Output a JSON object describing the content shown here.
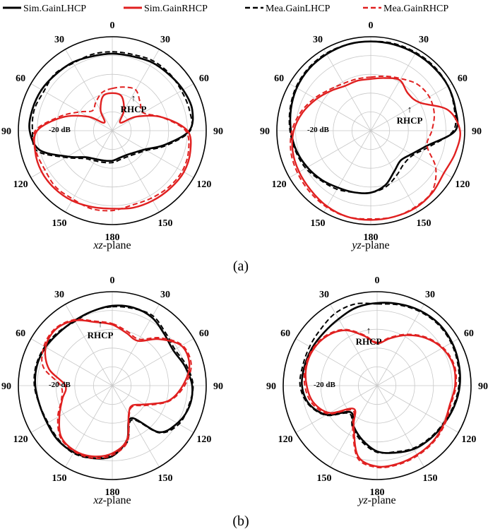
{
  "legend": {
    "items": [
      {
        "label": "Sim.GainLHCP",
        "color": "#000000",
        "dash": "solid"
      },
      {
        "label": "Sim.GainRHCP",
        "color": "#e02020",
        "dash": "solid"
      },
      {
        "label": "Mea.GainLHCP",
        "color": "#000000",
        "dash": "dashed"
      },
      {
        "label": "Mea.GainRHCP",
        "color": "#e02020",
        "dash": "dashed"
      }
    ]
  },
  "captions": {
    "a": "(a)",
    "b": "(b)"
  },
  "chart_data": [
    {
      "type": "polar-line",
      "panel": "a",
      "plane_var": "xz",
      "plane_suffix": "-plane",
      "level_label": "-20 dB",
      "annotation": "RHCP",
      "annotation_arrow": "↑",
      "angle_ticks": [
        "0",
        "30",
        "60",
        "90",
        "120",
        "150",
        "180",
        "150",
        "120",
        "90",
        "60",
        "30"
      ],
      "radial_scale": "normalized 0-1 (outer ring = max gain)",
      "series": [
        {
          "label": "Sim.GainLHCP",
          "theta_deg": [
            0,
            15,
            30,
            45,
            60,
            75,
            90,
            105,
            120,
            135,
            150,
            165,
            180,
            195,
            210,
            225,
            240,
            255,
            270,
            285,
            300,
            315,
            330,
            345
          ],
          "r": [
            0.82,
            0.82,
            0.84,
            0.85,
            0.87,
            0.88,
            0.82,
            0.58,
            0.4,
            0.33,
            0.3,
            0.3,
            0.32,
            0.33,
            0.35,
            0.4,
            0.55,
            0.8,
            0.88,
            0.88,
            0.87,
            0.85,
            0.84,
            0.82
          ]
        },
        {
          "label": "Mea.GainLHCP",
          "theta_deg": [
            0,
            15,
            30,
            45,
            60,
            75,
            90,
            105,
            120,
            135,
            150,
            165,
            180,
            195,
            210,
            225,
            240,
            255,
            270,
            285,
            300,
            315,
            330,
            345
          ],
          "r": [
            0.84,
            0.84,
            0.86,
            0.86,
            0.85,
            0.85,
            0.83,
            0.6,
            0.42,
            0.35,
            0.32,
            0.32,
            0.34,
            0.35,
            0.37,
            0.42,
            0.57,
            0.83,
            0.85,
            0.86,
            0.84,
            0.86,
            0.83,
            0.84
          ]
        },
        {
          "label": "Sim.GainRHCP",
          "theta_deg": [
            0,
            15,
            30,
            45,
            60,
            75,
            90,
            105,
            120,
            135,
            150,
            165,
            180,
            195,
            210,
            225,
            240,
            255,
            270,
            285,
            300,
            315,
            330,
            345
          ],
          "r": [
            0.4,
            0.38,
            0.25,
            0.12,
            0.3,
            0.55,
            0.8,
            0.86,
            0.88,
            0.87,
            0.86,
            0.85,
            0.83,
            0.84,
            0.86,
            0.87,
            0.87,
            0.85,
            0.8,
            0.55,
            0.3,
            0.12,
            0.25,
            0.38
          ]
        },
        {
          "label": "Mea.GainRHCP",
          "theta_deg": [
            0,
            15,
            30,
            45,
            60,
            75,
            90,
            105,
            120,
            135,
            150,
            165,
            180,
            195,
            210,
            225,
            240,
            255,
            270,
            285,
            300,
            315,
            330,
            345
          ],
          "r": [
            0.45,
            0.48,
            0.5,
            0.42,
            0.38,
            0.55,
            0.78,
            0.84,
            0.86,
            0.85,
            0.83,
            0.82,
            0.85,
            0.86,
            0.84,
            0.85,
            0.83,
            0.84,
            0.82,
            0.58,
            0.4,
            0.3,
            0.35,
            0.42
          ]
        }
      ]
    },
    {
      "type": "polar-line",
      "panel": "a",
      "plane_var": "yz",
      "plane_suffix": "-plane",
      "level_label": "-20 dB",
      "annotation": "RHCP",
      "annotation_arrow": "↑",
      "angle_ticks": [
        "0",
        "30",
        "60",
        "90",
        "120",
        "150",
        "180",
        "150",
        "120",
        "90",
        "60",
        "30"
      ],
      "radial_scale": "normalized 0-1 (outer ring = max gain)",
      "series": [
        {
          "label": "Sim.GainLHCP",
          "theta_deg": [
            0,
            15,
            30,
            45,
            60,
            75,
            90,
            105,
            120,
            135,
            150,
            165,
            180,
            195,
            210,
            225,
            240,
            255,
            270,
            285,
            300,
            315,
            330,
            345
          ],
          "r": [
            0.95,
            0.95,
            0.95,
            0.95,
            0.95,
            0.93,
            0.9,
            0.62,
            0.5,
            0.45,
            0.5,
            0.6,
            0.66,
            0.68,
            0.7,
            0.74,
            0.78,
            0.82,
            0.85,
            0.88,
            0.91,
            0.93,
            0.94,
            0.95
          ]
        },
        {
          "label": "Mea.GainLHCP",
          "theta_deg": [
            0,
            15,
            30,
            45,
            60,
            75,
            90,
            105,
            120,
            135,
            150,
            165,
            180,
            195,
            210,
            225,
            240,
            255,
            270,
            285,
            300,
            315,
            330,
            345
          ],
          "r": [
            0.95,
            0.96,
            0.96,
            0.96,
            0.95,
            0.92,
            0.88,
            0.65,
            0.52,
            0.5,
            0.55,
            0.62,
            0.66,
            0.68,
            0.72,
            0.75,
            0.8,
            0.83,
            0.86,
            0.89,
            0.92,
            0.94,
            0.95,
            0.95
          ]
        },
        {
          "label": "Sim.GainRHCP",
          "theta_deg": [
            0,
            15,
            30,
            45,
            60,
            75,
            90,
            105,
            120,
            135,
            150,
            165,
            180,
            195,
            210,
            225,
            240,
            255,
            270,
            285,
            300,
            315,
            330,
            345
          ],
          "r": [
            0.55,
            0.58,
            0.62,
            0.56,
            0.6,
            0.85,
            0.95,
            0.93,
            0.9,
            0.93,
            0.95,
            0.95,
            0.95,
            0.95,
            0.93,
            0.9,
            0.88,
            0.86,
            0.82,
            0.75,
            0.67,
            0.6,
            0.55,
            0.55
          ]
        },
        {
          "label": "Mea.GainRHCP",
          "theta_deg": [
            0,
            15,
            30,
            45,
            60,
            75,
            90,
            105,
            120,
            135,
            150,
            165,
            180,
            195,
            210,
            225,
            240,
            255,
            270,
            285,
            300,
            315,
            330,
            345
          ],
          "r": [
            0.57,
            0.6,
            0.64,
            0.7,
            0.72,
            0.7,
            0.65,
            0.62,
            0.8,
            0.92,
            0.94,
            0.95,
            0.94,
            0.95,
            0.94,
            0.92,
            0.9,
            0.88,
            0.84,
            0.77,
            0.69,
            0.62,
            0.58,
            0.57
          ]
        }
      ]
    },
    {
      "type": "polar-line",
      "panel": "b",
      "plane_var": "xz",
      "plane_suffix": "-plane",
      "level_label": "-20 dB",
      "annotation": "RHCP",
      "annotation_arrow": "↑",
      "angle_ticks": [
        "0",
        "30",
        "60",
        "90",
        "120",
        "150",
        "180",
        "150",
        "120",
        "90",
        "60",
        "30"
      ],
      "radial_scale": "normalized 0-1 (outer ring = max gain)",
      "series": [
        {
          "label": "Sim.GainLHCP",
          "theta_deg": [
            0,
            15,
            30,
            45,
            60,
            75,
            90,
            105,
            120,
            135,
            150,
            165,
            180,
            195,
            210,
            225,
            240,
            255,
            270,
            285,
            300,
            315,
            330,
            345
          ],
          "r": [
            0.85,
            0.86,
            0.84,
            0.78,
            0.75,
            0.8,
            0.85,
            0.85,
            0.8,
            0.7,
            0.4,
            0.6,
            0.75,
            0.8,
            0.82,
            0.82,
            0.8,
            0.8,
            0.82,
            0.83,
            0.82,
            0.8,
            0.8,
            0.82
          ]
        },
        {
          "label": "Mea.GainLHCP",
          "theta_deg": [
            0,
            15,
            30,
            45,
            60,
            75,
            90,
            105,
            120,
            135,
            150,
            165,
            180,
            195,
            210,
            225,
            240,
            255,
            270,
            285,
            300,
            315,
            330,
            345
          ],
          "r": [
            0.84,
            0.85,
            0.86,
            0.8,
            0.77,
            0.82,
            0.86,
            0.84,
            0.82,
            0.71,
            0.42,
            0.62,
            0.73,
            0.8,
            0.83,
            0.81,
            0.79,
            0.8,
            0.83,
            0.84,
            0.83,
            0.81,
            0.79,
            0.82
          ]
        },
        {
          "label": "Sim.GainRHCP",
          "theta_deg": [
            0,
            15,
            30,
            45,
            60,
            75,
            90,
            105,
            120,
            135,
            150,
            165,
            180,
            195,
            210,
            225,
            240,
            255,
            270,
            285,
            300,
            315,
            330,
            345
          ],
          "r": [
            0.65,
            0.58,
            0.55,
            0.7,
            0.85,
            0.85,
            0.75,
            0.62,
            0.4,
            0.3,
            0.35,
            0.6,
            0.72,
            0.78,
            0.8,
            0.77,
            0.65,
            0.55,
            0.5,
            0.7,
            0.82,
            0.85,
            0.8,
            0.7
          ]
        },
        {
          "label": "Mea.GainRHCP",
          "theta_deg": [
            0,
            15,
            30,
            45,
            60,
            75,
            90,
            105,
            120,
            135,
            150,
            165,
            180,
            195,
            210,
            225,
            240,
            255,
            270,
            285,
            300,
            315,
            330,
            345
          ],
          "r": [
            0.66,
            0.6,
            0.57,
            0.72,
            0.86,
            0.87,
            0.77,
            0.63,
            0.42,
            0.31,
            0.36,
            0.62,
            0.74,
            0.8,
            0.81,
            0.78,
            0.67,
            0.56,
            0.55,
            0.76,
            0.84,
            0.86,
            0.81,
            0.71
          ]
        }
      ]
    },
    {
      "type": "polar-line",
      "panel": "b",
      "plane_var": "yz",
      "plane_suffix": "-plane",
      "level_label": "-20 dB",
      "annotation": "RHCP",
      "annotation_arrow": "↑",
      "angle_ticks": [
        "0",
        "30",
        "60",
        "90",
        "120",
        "150",
        "180",
        "150",
        "120",
        "90",
        "60",
        "30"
      ],
      "radial_scale": "normalized 0-1 (outer ring = max gain)",
      "series": [
        {
          "label": "Sim.GainLHCP",
          "theta_deg": [
            0,
            15,
            30,
            45,
            60,
            75,
            90,
            105,
            120,
            135,
            150,
            165,
            180,
            195,
            210,
            225,
            240,
            255,
            270,
            285,
            300,
            315,
            330,
            345
          ],
          "r": [
            0.88,
            0.9,
            0.92,
            0.93,
            0.92,
            0.9,
            0.88,
            0.85,
            0.82,
            0.8,
            0.78,
            0.74,
            0.7,
            0.6,
            0.5,
            0.4,
            0.62,
            0.75,
            0.8,
            0.8,
            0.8,
            0.8,
            0.82,
            0.86
          ]
        },
        {
          "label": "Mea.GainLHCP",
          "theta_deg": [
            0,
            15,
            30,
            45,
            60,
            75,
            90,
            105,
            120,
            135,
            150,
            165,
            180,
            195,
            210,
            225,
            240,
            255,
            270,
            285,
            300,
            315,
            330,
            345
          ],
          "r": [
            0.87,
            0.89,
            0.91,
            0.92,
            0.91,
            0.89,
            0.87,
            0.84,
            0.81,
            0.79,
            0.77,
            0.73,
            0.71,
            0.62,
            0.52,
            0.42,
            0.63,
            0.76,
            0.82,
            0.82,
            0.83,
            0.85,
            0.89,
            0.9
          ]
        },
        {
          "label": "Sim.GainRHCP",
          "theta_deg": [
            0,
            15,
            30,
            45,
            60,
            75,
            90,
            105,
            120,
            135,
            150,
            165,
            180,
            195,
            210,
            225,
            240,
            255,
            270,
            285,
            300,
            315,
            330,
            345
          ],
          "r": [
            0.45,
            0.52,
            0.62,
            0.72,
            0.8,
            0.84,
            0.83,
            0.8,
            0.82,
            0.84,
            0.85,
            0.86,
            0.86,
            0.78,
            0.5,
            0.35,
            0.58,
            0.7,
            0.75,
            0.78,
            0.78,
            0.75,
            0.68,
            0.55
          ]
        },
        {
          "label": "Mea.GainRHCP",
          "theta_deg": [
            0,
            15,
            30,
            45,
            60,
            75,
            90,
            105,
            120,
            135,
            150,
            165,
            180,
            195,
            210,
            225,
            240,
            255,
            270,
            285,
            300,
            315,
            330,
            345
          ],
          "r": [
            0.46,
            0.53,
            0.63,
            0.73,
            0.81,
            0.85,
            0.84,
            0.81,
            0.83,
            0.85,
            0.86,
            0.87,
            0.87,
            0.8,
            0.52,
            0.37,
            0.6,
            0.72,
            0.77,
            0.79,
            0.79,
            0.76,
            0.69,
            0.56
          ]
        }
      ]
    }
  ]
}
